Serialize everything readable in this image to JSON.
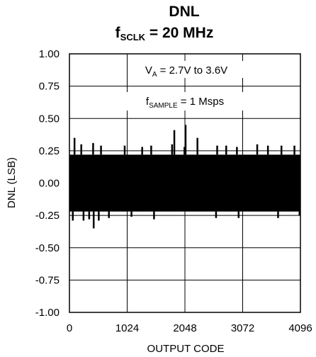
{
  "chart_data": {
    "type": "line",
    "title": {
      "main": "DNL",
      "line2_base": "f",
      "line2_sub": "SCLK",
      "line2_rest": " = 20 MHz"
    },
    "xlabel": "OUTPUT CODE",
    "ylabel": "DNL (LSB)",
    "xlim": [
      0,
      4096
    ],
    "ylim": [
      -1.0,
      1.0
    ],
    "x_ticks": [
      0,
      1024,
      2048,
      3072,
      4096
    ],
    "x_tick_labels": [
      "0",
      "1024",
      "2048",
      "3072",
      "4096"
    ],
    "y_ticks": [
      1.0,
      0.75,
      0.5,
      0.25,
      0.0,
      -0.25,
      -0.5,
      -0.75,
      -1.0
    ],
    "y_tick_labels": [
      "1.00",
      "0.75",
      "0.50",
      "0.25",
      "0.00",
      "-0.25",
      "-0.50",
      "-0.75",
      "-1.00"
    ],
    "grid": true,
    "annotations": [
      {
        "base": "V",
        "sub": "A",
        "rest": " = 2.7V to 3.6V"
      },
      {
        "base": "f",
        "sub": "SAMPLE",
        "rest": " = 1 Msps"
      }
    ],
    "series": [
      {
        "color": "#000000",
        "band": {
          "upper": 0.22,
          "lower": -0.22
        },
        "upper_spikes": [
          {
            "x": 90,
            "y": 0.35
          },
          {
            "x": 210,
            "y": 0.3
          },
          {
            "x": 420,
            "y": 0.31
          },
          {
            "x": 560,
            "y": 0.29
          },
          {
            "x": 980,
            "y": 0.29
          },
          {
            "x": 1290,
            "y": 0.28
          },
          {
            "x": 1450,
            "y": 0.29
          },
          {
            "x": 1820,
            "y": 0.3
          },
          {
            "x": 1860,
            "y": 0.41
          },
          {
            "x": 2040,
            "y": 0.28
          },
          {
            "x": 2060,
            "y": 0.45
          },
          {
            "x": 2270,
            "y": 0.35
          },
          {
            "x": 2620,
            "y": 0.29
          },
          {
            "x": 2780,
            "y": 0.29
          },
          {
            "x": 2970,
            "y": 0.28
          },
          {
            "x": 3330,
            "y": 0.3
          },
          {
            "x": 3520,
            "y": 0.29
          },
          {
            "x": 3760,
            "y": 0.29
          },
          {
            "x": 3990,
            "y": 0.29
          }
        ],
        "lower_spikes": [
          {
            "x": 60,
            "y": -0.29
          },
          {
            "x": 250,
            "y": -0.29
          },
          {
            "x": 350,
            "y": -0.28
          },
          {
            "x": 430,
            "y": -0.35
          },
          {
            "x": 520,
            "y": -0.29
          },
          {
            "x": 700,
            "y": -0.27
          },
          {
            "x": 1100,
            "y": -0.26
          },
          {
            "x": 1500,
            "y": -0.28
          },
          {
            "x": 2600,
            "y": -0.27
          },
          {
            "x": 3000,
            "y": -0.27
          },
          {
            "x": 3700,
            "y": -0.27
          },
          {
            "x": 4080,
            "y": -0.25
          }
        ]
      }
    ]
  }
}
